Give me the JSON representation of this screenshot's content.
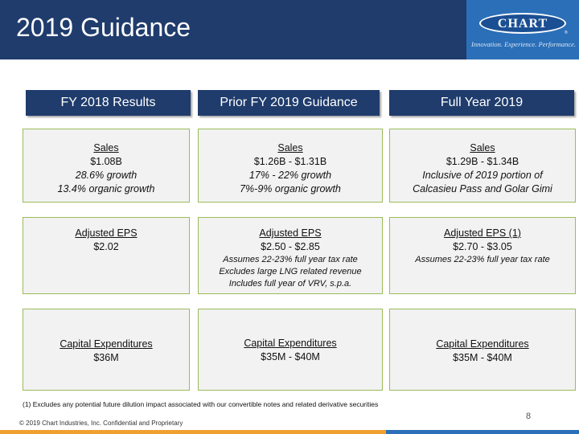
{
  "title": "2019 Guidance",
  "logo": {
    "name": "CHART",
    "tagline": "Innovation. Experience. Performance."
  },
  "columns": [
    {
      "header": "FY 2018 Results"
    },
    {
      "header": "Prior FY 2019 Guidance"
    },
    {
      "header": "Full Year 2019"
    }
  ],
  "rows": {
    "sales": [
      {
        "label": "Sales",
        "value": "$1.08B",
        "line1": "28.6% growth",
        "line2": "13.4% organic growth"
      },
      {
        "label": "Sales",
        "value": "$1.26B - $1.31B",
        "line1": "17% - 22% growth",
        "line2": "7%-9% organic growth"
      },
      {
        "label": "Sales",
        "value": "$1.29B - $1.34B",
        "line1": "Inclusive of 2019 portion of",
        "line2": "Calcasieu Pass and Golar Gimi"
      }
    ],
    "eps": [
      {
        "label": "Adjusted EPS",
        "value": "$2.02"
      },
      {
        "label": "Adjusted EPS",
        "value": "$2.50 - $2.85",
        "note1": "Assumes 22-23% full year tax rate",
        "note2": "Excludes large LNG related revenue",
        "note3": "Includes full year of VRV, s.p.a."
      },
      {
        "label": "Adjusted EPS (1)",
        "value": "$2.70 - $3.05",
        "note1": "Assumes 22-23% full year tax rate"
      }
    ],
    "capex": [
      {
        "label": "Capital Expenditures",
        "value": "$36M"
      },
      {
        "label": "Capital Expenditures",
        "value": "$35M - $40M"
      },
      {
        "label": "Capital Expenditures",
        "value": "$35M - $40M"
      }
    ]
  },
  "footnote": "(1) Excludes any potential future dilution impact associated with our convertible notes and related derivative securities",
  "copyright": "© 2019 Chart Industries, Inc. Confidential and Proprietary",
  "page_number": "8",
  "colors": {
    "header_bg": "#1f3c6c",
    "logo_bg": "#2b6fb8",
    "cell_border": "#9bbb59",
    "cell_bg": "#f2f2f2",
    "bar_orange": "#f0a030",
    "bar_blue": "#2b6fb8"
  }
}
